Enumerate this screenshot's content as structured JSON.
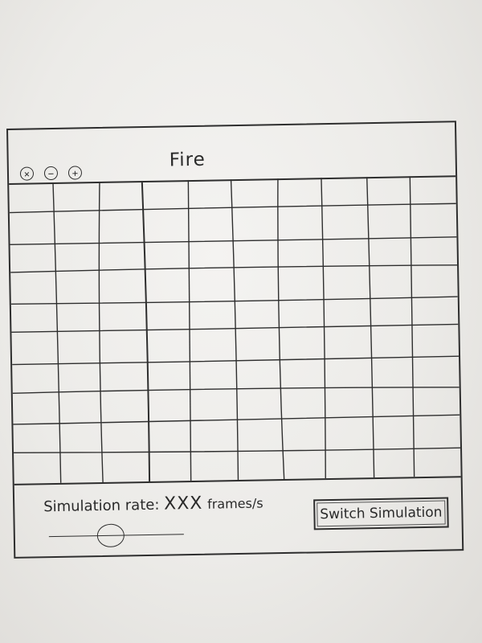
{
  "window": {
    "title": "Fire",
    "controls": [
      {
        "name": "close",
        "glyph": "×"
      },
      {
        "name": "minimize",
        "glyph": "−"
      },
      {
        "name": "maximize",
        "glyph": "+"
      }
    ]
  },
  "grid": {
    "rows": 10,
    "columns": 10
  },
  "controls": {
    "rate_label": "Simulation rate:",
    "rate_value": "XXX",
    "rate_unit": "frames/s",
    "slider_level": 0.45,
    "switch_label": "Switch Simulation"
  },
  "colors": {
    "ink": "#2e2e2e",
    "paper": "#eceae6"
  }
}
